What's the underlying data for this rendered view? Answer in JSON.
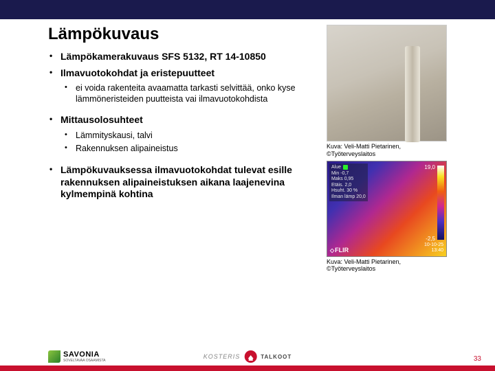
{
  "colors": {
    "topbar": "#1a1a4d",
    "redbar": "#c8102e",
    "pagenum": "#c8102e"
  },
  "title": "Lämpökuvaus",
  "bullets": [
    {
      "text": "Lämpökamerakuvaus SFS 5132, RT 14-10850"
    },
    {
      "text": "Ilmavuotokohdat ja eristepuutteet",
      "sub": [
        "ei voida rakenteita avaamatta tarkasti selvittää, onko kyse lämmöneristeiden puutteista vai ilmavuotokohdista"
      ]
    },
    {
      "text": "Mittausolosuhteet",
      "sub": [
        "Lämmityskausi, talvi",
        "Rakennuksen alipaineistus"
      ]
    },
    {
      "text": "Lämpökuvauksessa ilmavuotokohdat tulevat esille rakennuksen alipaineistuksen aikana laajenevina kylmempinä kohtina"
    }
  ],
  "image1": {
    "caption_line1": "Kuva: Veli-Matti Pietarinen,",
    "caption_line2": "©Työterveyslaitos"
  },
  "thermal": {
    "hud_alue": "Alue",
    "hud_min": "Min",
    "hud_min_val": "-0,7",
    "hud_max": "Maks",
    "hud_max_val": "0,95",
    "hud_etais": "Etäis.",
    "hud_etais_val": "2,0",
    "hud_hsuht": "Hsuht.",
    "hud_hsuht_val": "30 %",
    "hud_ilman": "Ilman lämp",
    "hud_ilman_val": "20,0",
    "scale_top": "19,0",
    "scale_bot": "-2,5",
    "flir": "FLIR",
    "ts1": "10-10-25",
    "ts2": "13:40",
    "caption_line1": "Kuva: Veli-Matti Pietarinen,",
    "caption_line2": "©Työterveyslaitos"
  },
  "footer": {
    "savonia": "SAVONIA",
    "savsub": "SOVELTAVAA OSAAMISTA",
    "kost": "KOSTERIS",
    "talkoot": "TALKOOT",
    "page": "33"
  }
}
